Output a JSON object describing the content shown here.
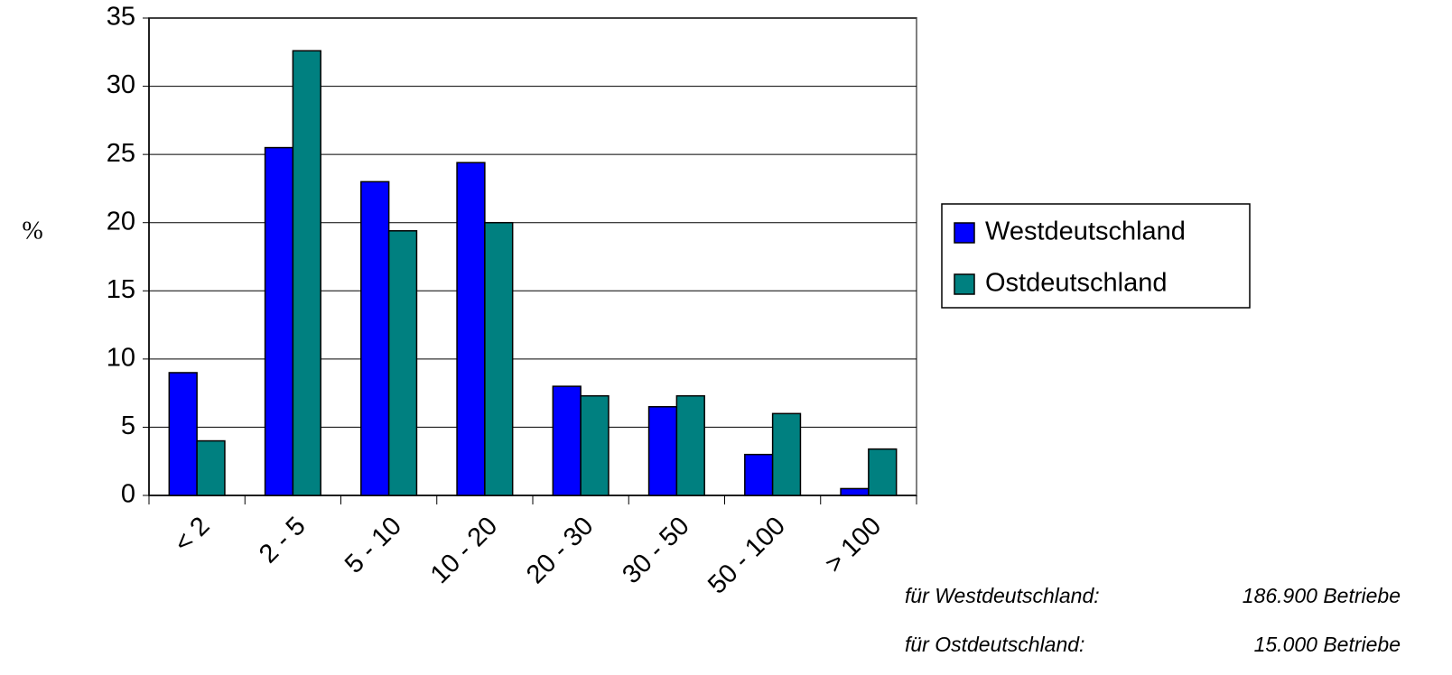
{
  "chart_data": {
    "type": "bar",
    "y_label": "%",
    "categories": [
      "< 2",
      "2 - 5",
      "5 - 10",
      "10 - 20",
      "20 - 30",
      "30 - 50",
      "50 - 100",
      "> 100"
    ],
    "series": [
      {
        "name": "Westdeutschland",
        "color": "#0000ff",
        "values": [
          9.0,
          25.5,
          23.0,
          24.4,
          8.0,
          6.5,
          3.0,
          0.5
        ]
      },
      {
        "name": "Ostdeutschland",
        "color": "#008080",
        "values": [
          4.0,
          32.6,
          19.4,
          20.0,
          7.3,
          7.3,
          6.0,
          3.4
        ]
      }
    ],
    "ylim": [
      0,
      35
    ],
    "yticks": [
      0,
      5,
      10,
      15,
      20,
      25,
      30,
      35
    ],
    "grid": true,
    "legend": "right",
    "annotations": [
      {
        "label": "für Westdeutschland:",
        "text": "186.900 Betriebe"
      },
      {
        "label": "für Ostdeutschland:",
        "text": "15.000 Betriebe"
      }
    ]
  }
}
